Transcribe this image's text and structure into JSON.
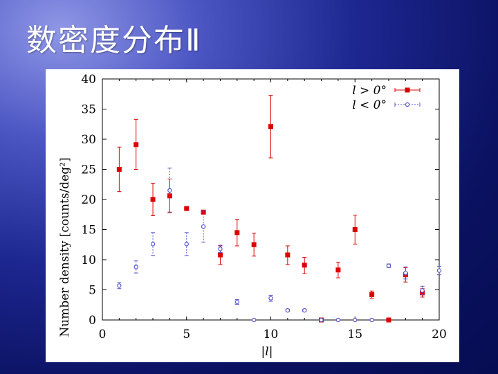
{
  "slide": {
    "title": "数密度分布Ⅱ"
  },
  "chart_data": {
    "type": "scatter",
    "xlabel": "|l|",
    "ylabel": "Number density [counts/deg²]",
    "xlim": [
      0,
      20
    ],
    "ylim": [
      0,
      40
    ],
    "x_ticks": [
      "0",
      "5",
      "10",
      "15",
      "20"
    ],
    "y_ticks": [
      "0",
      "5",
      "10",
      "15",
      "20",
      "25",
      "30",
      "35",
      "40"
    ],
    "legend_position": "top-right",
    "series": [
      {
        "name": "l > 0°",
        "color": "#dd0000",
        "marker": "square",
        "points": [
          {
            "x": 1,
            "y": 25.0,
            "lo": 21.3,
            "hi": 28.7
          },
          {
            "x": 2,
            "y": 29.1,
            "lo": 25.0,
            "hi": 33.3
          },
          {
            "x": 3,
            "y": 20.0,
            "lo": 17.3,
            "hi": 22.7
          },
          {
            "x": 4,
            "y": 20.6,
            "lo": 17.9,
            "hi": 23.4
          },
          {
            "x": 5,
            "y": 18.5,
            "lo": 18.5,
            "hi": 18.5
          },
          {
            "x": 6,
            "y": 17.9,
            "lo": 17.9,
            "hi": 17.9
          },
          {
            "x": 7,
            "y": 10.8,
            "lo": 9.2,
            "hi": 12.3
          },
          {
            "x": 8,
            "y": 14.5,
            "lo": 12.3,
            "hi": 16.7
          },
          {
            "x": 9,
            "y": 12.5,
            "lo": 10.6,
            "hi": 14.4
          },
          {
            "x": 10,
            "y": 32.1,
            "lo": 26.9,
            "hi": 37.3
          },
          {
            "x": 11,
            "y": 10.8,
            "lo": 9.2,
            "hi": 12.3
          },
          {
            "x": 12,
            "y": 9.1,
            "lo": 7.7,
            "hi": 10.4
          },
          {
            "x": 13,
            "y": 0.0,
            "lo": 0.0,
            "hi": 0.0
          },
          {
            "x": 14,
            "y": 8.3,
            "lo": 7.0,
            "hi": 9.6
          },
          {
            "x": 15,
            "y": 15.0,
            "lo": 12.6,
            "hi": 17.4
          },
          {
            "x": 16,
            "y": 4.2,
            "lo": 3.6,
            "hi": 4.8
          },
          {
            "x": 17,
            "y": 0.0,
            "lo": 0.0,
            "hi": 0.0
          },
          {
            "x": 18,
            "y": 7.5,
            "lo": 6.3,
            "hi": 8.7
          },
          {
            "x": 19,
            "y": 4.5,
            "lo": 3.8,
            "hi": 5.2
          }
        ]
      },
      {
        "name": "l < 0°",
        "color": "#5555cc",
        "marker": "open-circle",
        "points": [
          {
            "x": 1,
            "y": 5.7,
            "lo": 5.2,
            "hi": 6.2
          },
          {
            "x": 2,
            "y": 8.8,
            "lo": 7.8,
            "hi": 9.8
          },
          {
            "x": 3,
            "y": 12.6,
            "lo": 10.7,
            "hi": 14.5
          },
          {
            "x": 4,
            "y": 21.5,
            "lo": 17.8,
            "hi": 25.2
          },
          {
            "x": 5,
            "y": 12.6,
            "lo": 10.7,
            "hi": 14.5
          },
          {
            "x": 6,
            "y": 15.5,
            "lo": 12.9,
            "hi": 18.1
          },
          {
            "x": 7,
            "y": 11.8,
            "lo": 11.2,
            "hi": 12.4
          },
          {
            "x": 8,
            "y": 3.0,
            "lo": 2.6,
            "hi": 3.4
          },
          {
            "x": 9,
            "y": 0.0,
            "lo": 0.0,
            "hi": 0.0
          },
          {
            "x": 10,
            "y": 3.6,
            "lo": 3.1,
            "hi": 4.1
          },
          {
            "x": 11,
            "y": 1.6,
            "lo": 1.4,
            "hi": 1.8
          },
          {
            "x": 12,
            "y": 1.6,
            "lo": 1.4,
            "hi": 1.8
          },
          {
            "x": 13,
            "y": 0.0,
            "lo": 0.0,
            "hi": 0.0
          },
          {
            "x": 14,
            "y": 0.0,
            "lo": 0.0,
            "hi": 0.0
          },
          {
            "x": 15,
            "y": 0.0,
            "lo": 0.0,
            "hi": 0.0
          },
          {
            "x": 16,
            "y": 0.0,
            "lo": 0.0,
            "hi": 0.0
          },
          {
            "x": 17,
            "y": 9.0,
            "lo": 8.7,
            "hi": 9.3
          },
          {
            "x": 18,
            "y": 7.8,
            "lo": 6.8,
            "hi": 8.8
          },
          {
            "x": 19,
            "y": 4.9,
            "lo": 4.2,
            "hi": 5.6
          },
          {
            "x": 20,
            "y": 8.2,
            "lo": 7.5,
            "hi": 8.9
          }
        ]
      }
    ]
  }
}
